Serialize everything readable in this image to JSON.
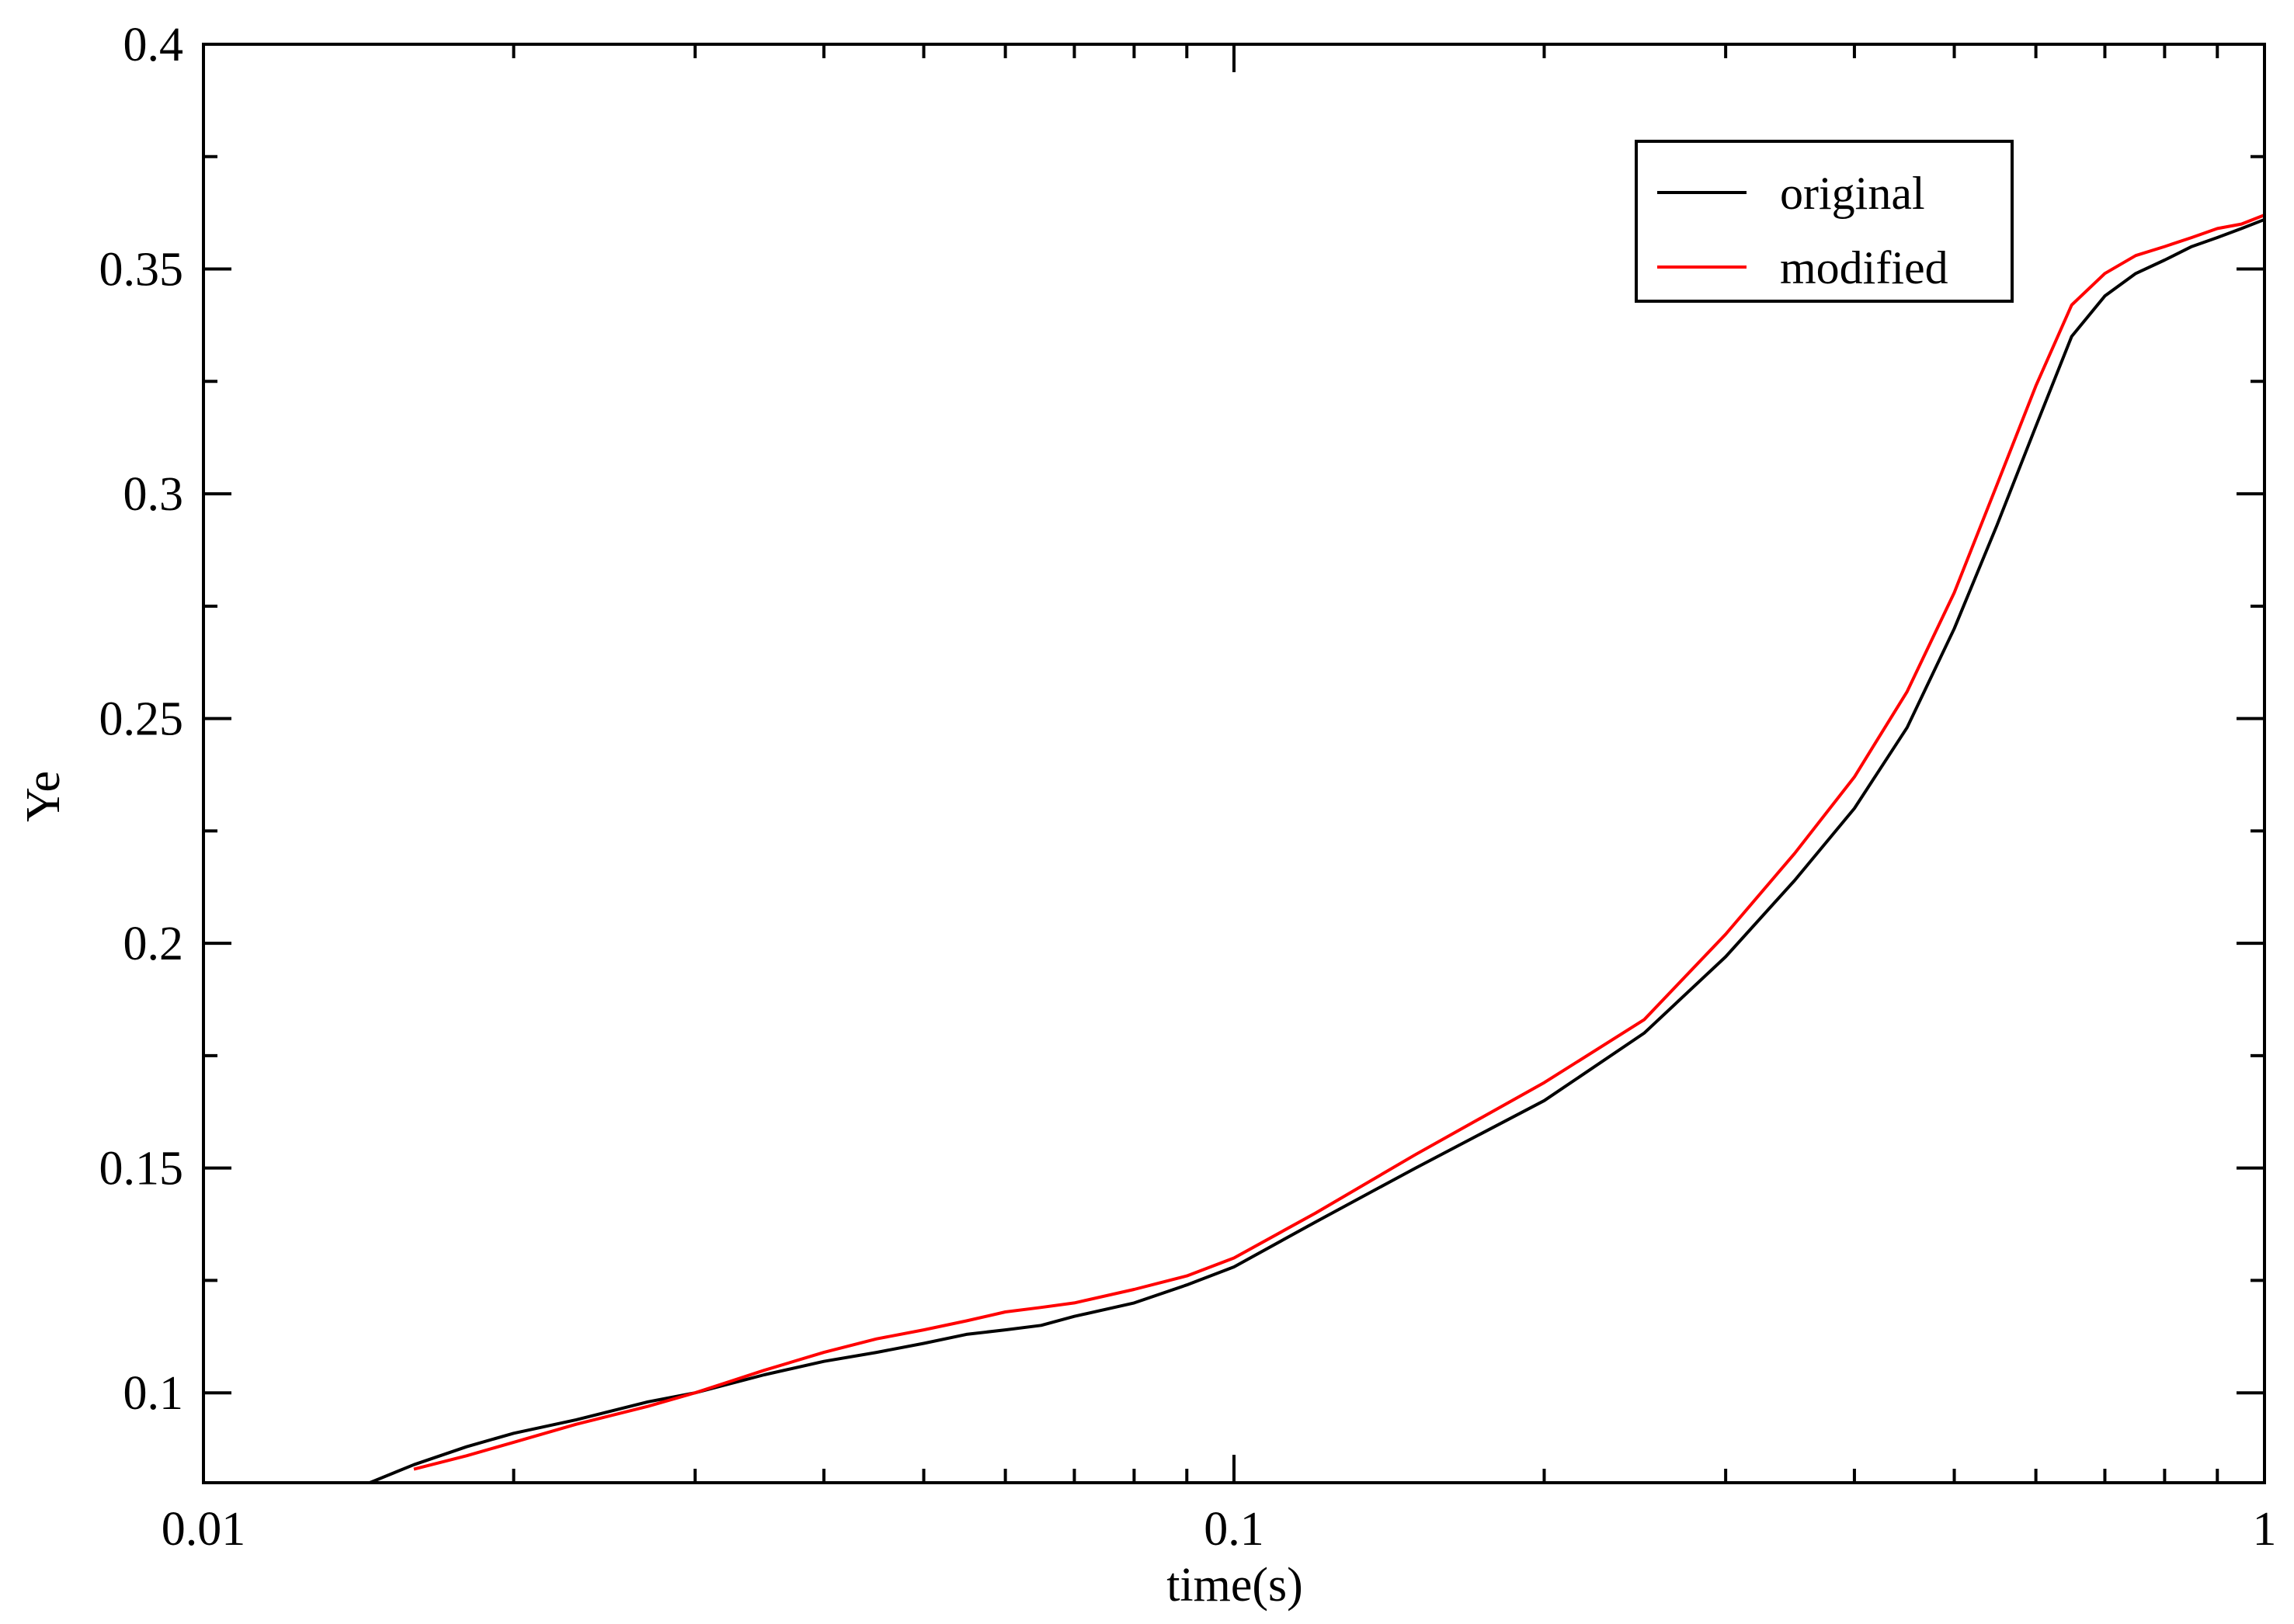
{
  "chart_data": {
    "type": "line",
    "xlabel": "time(s)",
    "ylabel": "Ye",
    "xscale": "log",
    "xlim": [
      0.01,
      1
    ],
    "ylim": [
      0.08,
      0.4
    ],
    "x_ticks": [
      0.01,
      0.1,
      1
    ],
    "x_tick_labels": [
      "0.01",
      "0.1",
      "1"
    ],
    "y_ticks": [
      0.1,
      0.15,
      0.2,
      0.25,
      0.3,
      0.35,
      0.4
    ],
    "y_tick_labels": [
      "0.1",
      "0.15",
      "0.2",
      "0.25",
      "0.3",
      "0.35",
      "0.4"
    ],
    "grid": false,
    "legend_position": "top-right",
    "series": [
      {
        "name": "original",
        "color": "#000000",
        "x": [
          0.0145,
          0.016,
          0.018,
          0.02,
          0.023,
          0.027,
          0.03,
          0.035,
          0.04,
          0.045,
          0.05,
          0.055,
          0.06,
          0.065,
          0.07,
          0.08,
          0.09,
          0.1,
          0.12,
          0.15,
          0.2,
          0.25,
          0.3,
          0.35,
          0.4,
          0.45,
          0.5,
          0.55,
          0.6,
          0.65,
          0.7,
          0.75,
          0.8,
          0.85,
          0.9,
          0.95,
          1.0
        ],
        "y": [
          0.08,
          0.084,
          0.088,
          0.091,
          0.094,
          0.098,
          0.1,
          0.104,
          0.107,
          0.109,
          0.111,
          0.113,
          0.114,
          0.115,
          0.117,
          0.12,
          0.124,
          0.128,
          0.138,
          0.15,
          0.165,
          0.18,
          0.197,
          0.214,
          0.23,
          0.248,
          0.27,
          0.293,
          0.315,
          0.335,
          0.344,
          0.349,
          0.352,
          0.355,
          0.357,
          0.359,
          0.361
        ]
      },
      {
        "name": "modified",
        "color": "#ff0000",
        "x": [
          0.016,
          0.018,
          0.02,
          0.023,
          0.027,
          0.03,
          0.035,
          0.04,
          0.045,
          0.05,
          0.055,
          0.06,
          0.065,
          0.07,
          0.08,
          0.09,
          0.1,
          0.12,
          0.15,
          0.2,
          0.25,
          0.3,
          0.35,
          0.4,
          0.45,
          0.5,
          0.55,
          0.6,
          0.65,
          0.7,
          0.75,
          0.8,
          0.85,
          0.9,
          0.95,
          1.0
        ],
        "y": [
          0.083,
          0.086,
          0.089,
          0.093,
          0.097,
          0.1,
          0.105,
          0.109,
          0.112,
          0.114,
          0.116,
          0.118,
          0.119,
          0.12,
          0.123,
          0.126,
          0.13,
          0.14,
          0.153,
          0.169,
          0.183,
          0.202,
          0.22,
          0.237,
          0.256,
          0.278,
          0.302,
          0.324,
          0.342,
          0.349,
          0.353,
          0.355,
          0.357,
          0.359,
          0.36,
          0.362
        ]
      }
    ]
  }
}
